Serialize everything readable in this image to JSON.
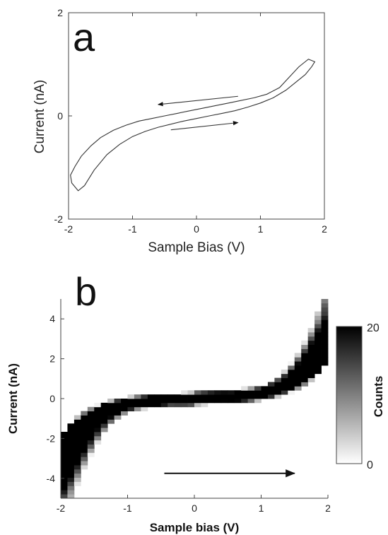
{
  "chart_data": [
    {
      "panel": "a",
      "type": "line",
      "xlabel": "Sample Bias (V)",
      "ylabel": "Current (nA)",
      "xlim": [
        -2,
        2
      ],
      "ylim": [
        -2,
        2
      ],
      "xticks": [
        "-2",
        "-1",
        "0",
        "1",
        "2"
      ],
      "yticks": [
        "-2",
        "0",
        "2"
      ],
      "grid": false,
      "series": [
        {
          "x": [
            -1.95,
            -1.85,
            -1.75,
            -1.6,
            -1.4,
            -1.2,
            -1.0,
            -0.8,
            -0.6,
            -0.4,
            -0.2,
            0.0,
            0.2,
            0.4,
            0.6,
            0.8,
            1.0,
            1.2,
            1.4,
            1.55,
            1.7,
            1.8,
            1.85,
            1.75,
            1.6,
            1.45,
            1.3,
            1.1,
            0.9,
            0.7,
            0.5,
            0.3,
            0.1,
            -0.1,
            -0.3,
            -0.5,
            -0.7,
            -0.9,
            -1.1,
            -1.3,
            -1.5,
            -1.65,
            -1.8,
            -1.9,
            -1.97,
            -1.95
          ],
          "y": [
            -1.3,
            -1.45,
            -1.35,
            -1.05,
            -0.75,
            -0.55,
            -0.4,
            -0.3,
            -0.22,
            -0.16,
            -0.1,
            -0.05,
            0.0,
            0.05,
            0.1,
            0.17,
            0.25,
            0.35,
            0.5,
            0.65,
            0.8,
            0.95,
            1.05,
            1.1,
            0.95,
            0.75,
            0.55,
            0.42,
            0.35,
            0.3,
            0.25,
            0.2,
            0.15,
            0.1,
            0.05,
            0.0,
            -0.05,
            -0.1,
            -0.18,
            -0.28,
            -0.42,
            -0.58,
            -0.78,
            -0.98,
            -1.15,
            -1.3
          ]
        }
      ],
      "arrows": [
        {
          "direction": "left",
          "x_from": 0.65,
          "y_from": 0.38,
          "x_to": -0.6,
          "y_to": 0.22
        },
        {
          "direction": "right",
          "x_from": -0.4,
          "y_from": -0.27,
          "x_to": 0.65,
          "y_to": -0.13
        }
      ],
      "letter": "a"
    },
    {
      "panel": "b",
      "type": "heatmap",
      "xlabel": "Sample bias (V)",
      "ylabel": "Current (nA)",
      "xlim": [
        -2,
        2
      ],
      "ylim": [
        -5,
        5
      ],
      "xticks": [
        "-2",
        "-1",
        "0",
        "1",
        "2"
      ],
      "yticks": [
        "-4",
        "-2",
        "0",
        "2",
        "4"
      ],
      "grid": false,
      "colorbar": {
        "label": "Counts",
        "min": 0,
        "max": 20,
        "ticks": [
          "0",
          "20"
        ],
        "colormap": "white-to-black"
      },
      "arrows": [
        {
          "direction": "right",
          "x_from": -0.45,
          "y_from": -3.75,
          "x_to": 1.5,
          "y_to": -3.75
        }
      ],
      "letter": "b"
    }
  ]
}
